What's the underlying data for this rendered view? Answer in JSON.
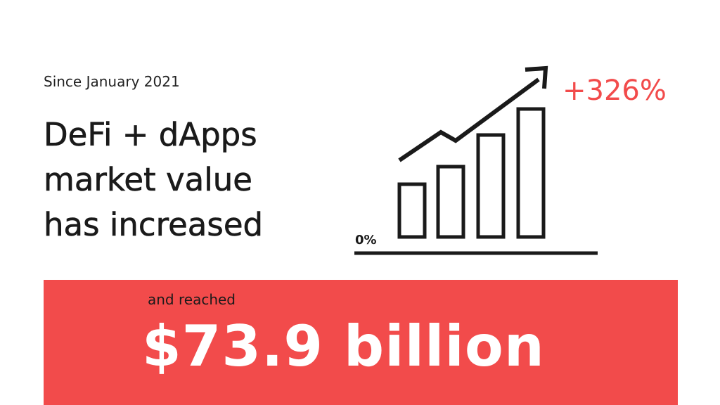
{
  "subtitle": "Since January 2021",
  "headline": {
    "line1": "DeFi + dApps",
    "line2": "market value",
    "line3": "has increased"
  },
  "graphic": {
    "baseline_label": "0%",
    "percent_change": "+326%",
    "icon": "growth-bar-chart-icon"
  },
  "banner": {
    "label": "and reached",
    "value": "$73.9 billion"
  },
  "colors": {
    "accent": "#f24b4b",
    "text": "#1a1a1a",
    "background": "#ffffff",
    "banner_text": "#ffffff"
  }
}
